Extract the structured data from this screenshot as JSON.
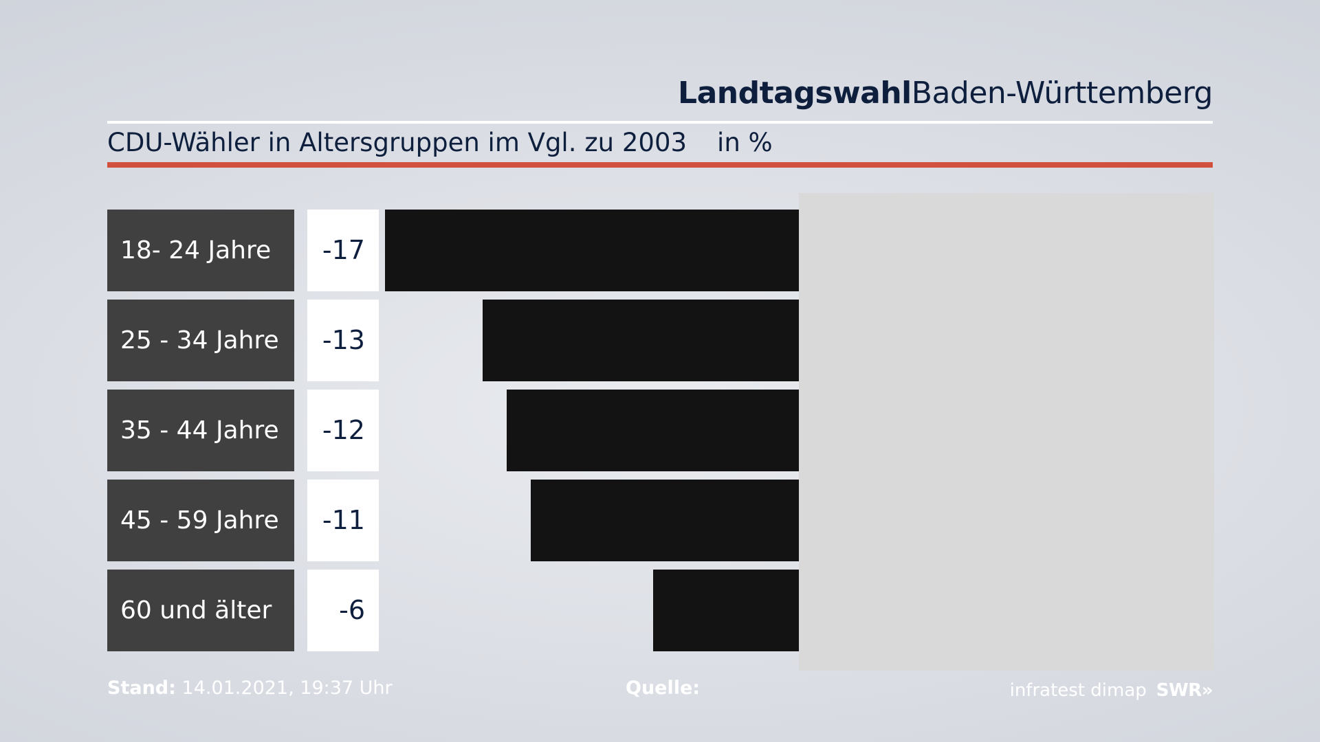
{
  "header": {
    "brand_strong": "Landtagswahl",
    "brand_region": "Baden-Württemberg"
  },
  "subtitle": {
    "title": "CDU-Wähler in Altersgruppen im Vgl. zu 2003",
    "unit": "in %"
  },
  "colors": {
    "accent_red": "#d1513e",
    "bar": "#131313",
    "label_bg": "#404040",
    "value_bg": "#ffffff",
    "text_dark": "#0e1f3d",
    "chart_bg": "#d9d9d9"
  },
  "chart_data": {
    "type": "bar",
    "orientation": "horizontal",
    "title": "CDU-Wähler in Altersgruppen im Vgl. zu 2003",
    "unit": "in %",
    "categories": [
      "18- 24 Jahre",
      "25 - 34 Jahre",
      "35 - 44 Jahre",
      "45 - 59 Jahre",
      "60 und älter"
    ],
    "values": [
      -17,
      -13,
      -12,
      -11,
      -6
    ],
    "value_labels": [
      "-17",
      "-13",
      "-12",
      "-11",
      "-6"
    ],
    "xlim": [
      -17,
      17
    ]
  },
  "footer": {
    "stand_label": "Stand:",
    "stand_value": "14.01.2021, 19:37 Uhr",
    "source_label": "Quelle:",
    "source_name": "infratest dimap",
    "broadcaster": "SWR",
    "broadcaster_glyph": "»"
  }
}
